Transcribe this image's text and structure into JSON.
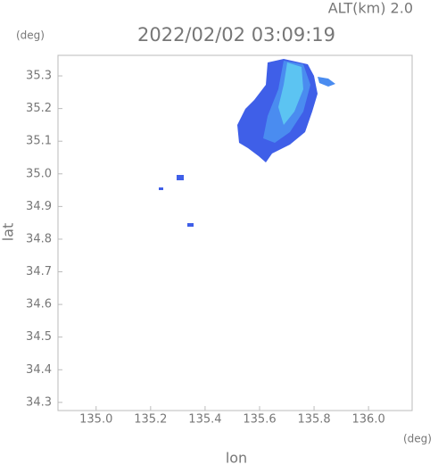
{
  "chart_data": {
    "type": "map",
    "title": "2022/02/02 03:09:19",
    "subtitle": "ALT(km) 2.0",
    "x_label": "lon",
    "y_label": "lat",
    "x_unit": "(deg)",
    "y_unit": "(deg)",
    "xlim": [
      134.86,
      136.16
    ],
    "ylim": [
      34.275,
      35.363
    ],
    "xticks": [
      {
        "value": 135.0,
        "label": "135.0"
      },
      135.2,
      135.4,
      135.6,
      135.8,
      {
        "value": 136.0,
        "label": "136.0"
      }
    ],
    "yticks": [
      34.3,
      34.4,
      34.5,
      34.6,
      34.7,
      34.8,
      34.9,
      {
        "value": 35.0,
        "label": "35.0"
      },
      35.1,
      35.2,
      35.3
    ]
  }
}
